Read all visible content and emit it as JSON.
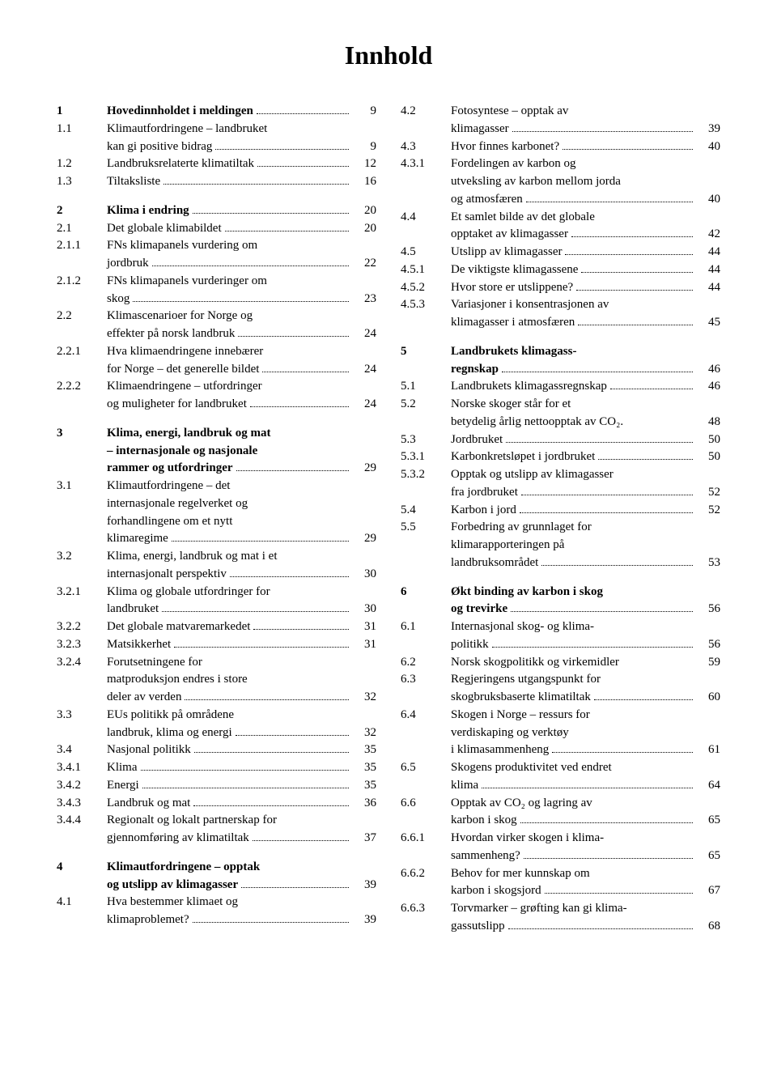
{
  "title": "Innhold",
  "left": [
    {
      "n": "1",
      "t": "Hovedinnholdet i meldingen",
      "p": "9",
      "bold": true,
      "dots": true
    },
    {
      "n": "1.1",
      "t": "Klimautfordringene – landbruket",
      "p": ""
    },
    {
      "n": "",
      "t": "kan gi positive bidrag",
      "p": "9",
      "dots": true
    },
    {
      "n": "1.2",
      "t": "Landbruksrelaterte klimatiltak",
      "p": "12",
      "dots": true
    },
    {
      "n": "1.3",
      "t": "Tiltaksliste",
      "p": "16",
      "dots": true
    },
    {
      "gap": true
    },
    {
      "n": "2",
      "t": "Klima i endring",
      "p": "20",
      "bold": true,
      "dots": true
    },
    {
      "n": "2.1",
      "t": "Det globale klimabildet",
      "p": "20",
      "dots": true
    },
    {
      "n": "2.1.1",
      "t": "FNs klimapanels vurdering om",
      "p": ""
    },
    {
      "n": "",
      "t": "jordbruk",
      "p": "22",
      "dots": true
    },
    {
      "n": "2.1.2",
      "t": "FNs klimapanels vurderinger om",
      "p": ""
    },
    {
      "n": "",
      "t": "skog",
      "p": "23",
      "dots": true
    },
    {
      "n": "2.2",
      "t": "Klimascenarioer for Norge og",
      "p": ""
    },
    {
      "n": "",
      "t": "effekter på norsk landbruk",
      "p": "24",
      "dots": true
    },
    {
      "n": "2.2.1",
      "t": "Hva klimaendringene innebærer",
      "p": ""
    },
    {
      "n": "",
      "t": "for Norge – det generelle bildet",
      "p": "24",
      "dots": true
    },
    {
      "n": "2.2.2",
      "t": "Klimaendringene – utfordringer",
      "p": ""
    },
    {
      "n": "",
      "t": "og muligheter for landbruket",
      "p": "24",
      "dots": true
    },
    {
      "gap": true
    },
    {
      "n": "3",
      "t": "Klima, energi, landbruk og mat",
      "p": "",
      "bold": true
    },
    {
      "n": "",
      "t": "– internasjonale og nasjonale",
      "p": "",
      "bold": true
    },
    {
      "n": "",
      "t": "rammer og utfordringer",
      "p": "29",
      "bold": true,
      "dots": true
    },
    {
      "n": "3.1",
      "t": "Klimautfordringene – det",
      "p": ""
    },
    {
      "n": "",
      "t": "internasjonale regelverket og",
      "p": ""
    },
    {
      "n": "",
      "t": "forhandlingene om et nytt",
      "p": ""
    },
    {
      "n": "",
      "t": "klimaregime",
      "p": "29",
      "dots": true
    },
    {
      "n": "3.2",
      "t": "Klima, energi, landbruk og mat i et",
      "p": ""
    },
    {
      "n": "",
      "t": "internasjonalt perspektiv",
      "p": "30",
      "dots": true
    },
    {
      "n": "3.2.1",
      "t": "Klima og globale utfordringer for",
      "p": ""
    },
    {
      "n": "",
      "t": "landbruket",
      "p": "30",
      "dots": true
    },
    {
      "n": "3.2.2",
      "t": "Det globale matvaremarkedet",
      "p": "31",
      "dots": true
    },
    {
      "n": "3.2.3",
      "t": "Matsikkerhet",
      "p": "31",
      "dots": true
    },
    {
      "n": "3.2.4",
      "t": "Forutsetningene for",
      "p": ""
    },
    {
      "n": "",
      "t": "matproduksjon endres i store",
      "p": ""
    },
    {
      "n": "",
      "t": "deler av verden",
      "p": "32",
      "dots": true
    },
    {
      "n": "3.3",
      "t": "EUs politikk på områdene",
      "p": ""
    },
    {
      "n": "",
      "t": "landbruk, klima og energi",
      "p": "32",
      "dots": true
    },
    {
      "n": "3.4",
      "t": "Nasjonal politikk",
      "p": "35",
      "dots": true
    },
    {
      "n": "3.4.1",
      "t": "Klima",
      "p": "35",
      "dots": true
    },
    {
      "n": "3.4.2",
      "t": "Energi",
      "p": "35",
      "dots": true
    },
    {
      "n": "3.4.3",
      "t": "Landbruk og mat",
      "p": "36",
      "dots": true
    },
    {
      "n": "3.4.4",
      "t": "Regionalt og lokalt partnerskap for",
      "p": ""
    },
    {
      "n": "",
      "t": "gjennomføring av klimatiltak",
      "p": "37",
      "dots": true
    },
    {
      "gap": true
    },
    {
      "n": "4",
      "t": "Klimautfordringene – opptak",
      "p": "",
      "bold": true
    },
    {
      "n": "",
      "t": "og utslipp av klimagasser",
      "p": "39",
      "bold": true,
      "dots": true
    },
    {
      "n": "4.1",
      "t": "Hva bestemmer klimaet og",
      "p": ""
    },
    {
      "n": "",
      "t": "klimaproblemet?",
      "p": "39",
      "dots": true
    }
  ],
  "right": [
    {
      "n": "4.2",
      "t": "Fotosyntese – opptak av",
      "p": ""
    },
    {
      "n": "",
      "t": "klimagasser",
      "p": "39",
      "dots": true
    },
    {
      "n": "4.3",
      "t": "Hvor finnes karbonet?",
      "p": "40",
      "dots": true
    },
    {
      "n": "4.3.1",
      "t": "Fordelingen av karbon og",
      "p": ""
    },
    {
      "n": "",
      "t": "utveksling av karbon mellom jorda",
      "p": ""
    },
    {
      "n": "",
      "t": "og atmosfæren",
      "p": "40",
      "dots": true
    },
    {
      "n": "4.4",
      "t": "Et samlet bilde av det globale",
      "p": ""
    },
    {
      "n": "",
      "t": "opptaket av klimagasser",
      "p": "42",
      "dots": true
    },
    {
      "n": "4.5",
      "t": "Utslipp av klimagasser",
      "p": "44",
      "dots": true
    },
    {
      "n": "4.5.1",
      "t": "De viktigste klimagassene",
      "p": "44",
      "dots": true
    },
    {
      "n": "4.5.2",
      "t": "Hvor store er utslippene?",
      "p": "44",
      "dots": true
    },
    {
      "n": "4.5.3",
      "t": "Variasjoner i konsentrasjonen av",
      "p": ""
    },
    {
      "n": "",
      "t": "klimagasser i atmosfæren",
      "p": "45",
      "dots": true
    },
    {
      "gap": true
    },
    {
      "n": "5",
      "t": "Landbrukets klimagass-",
      "p": "",
      "bold": true
    },
    {
      "n": "",
      "t": "regnskap",
      "p": "46",
      "bold": true,
      "dots": true
    },
    {
      "n": "5.1",
      "t": "Landbrukets klimagassregnskap",
      "p": "46",
      "dots": true
    },
    {
      "n": "5.2",
      "t": "Norske skoger står for et",
      "p": ""
    },
    {
      "n": "",
      "t": "betydelig årlig nettoopptak av CO₂.",
      "p": "48"
    },
    {
      "n": "5.3",
      "t": "Jordbruket",
      "p": "50",
      "dots": true
    },
    {
      "n": "5.3.1",
      "t": "Karbonkretsløpet i jordbruket",
      "p": "50",
      "dots": true
    },
    {
      "n": "5.3.2",
      "t": "Opptak og utslipp av klimagasser",
      "p": ""
    },
    {
      "n": "",
      "t": "fra jordbruket",
      "p": "52",
      "dots": true
    },
    {
      "n": "5.4",
      "t": "Karbon i jord",
      "p": "52",
      "dots": true
    },
    {
      "n": "5.5",
      "t": "Forbedring av grunnlaget for",
      "p": ""
    },
    {
      "n": "",
      "t": "klimarapporteringen på",
      "p": ""
    },
    {
      "n": "",
      "t": "landbruksområdet",
      "p": "53",
      "dots": true
    },
    {
      "gap": true
    },
    {
      "n": "6",
      "t": "Økt binding av karbon i skog",
      "p": "",
      "bold": true
    },
    {
      "n": "",
      "t": "og trevirke",
      "p": "56",
      "bold": true,
      "dots": true
    },
    {
      "n": "6.1",
      "t": "Internasjonal skog- og klima-",
      "p": ""
    },
    {
      "n": "",
      "t": "politikk",
      "p": "56",
      "dots": true
    },
    {
      "n": "6.2",
      "t": "Norsk skogpolitikk og virkemidler",
      "p": "59"
    },
    {
      "n": "6.3",
      "t": "Regjeringens utgangspunkt for",
      "p": ""
    },
    {
      "n": "",
      "t": "skogbruksbaserte klimatiltak",
      "p": "60",
      "dots": true
    },
    {
      "n": "6.4",
      "t": "Skogen i Norge – ressurs for",
      "p": ""
    },
    {
      "n": "",
      "t": "verdiskaping og verktøy",
      "p": ""
    },
    {
      "n": "",
      "t": "i klimasammenheng",
      "p": "61",
      "dots": true
    },
    {
      "n": "6.5",
      "t": "Skogens produktivitet ved endret",
      "p": ""
    },
    {
      "n": "",
      "t": "klima",
      "p": "64",
      "dots": true
    },
    {
      "n": "6.6",
      "t": "Opptak av CO₂ og lagring av",
      "p": ""
    },
    {
      "n": "",
      "t": "karbon i skog",
      "p": "65",
      "dots": true
    },
    {
      "n": "6.6.1",
      "t": "Hvordan virker skogen i klima-",
      "p": ""
    },
    {
      "n": "",
      "t": "sammenheng?",
      "p": "65",
      "dots": true
    },
    {
      "n": "6.6.2",
      "t": "Behov for mer kunnskap om",
      "p": ""
    },
    {
      "n": "",
      "t": "karbon i skogsjord",
      "p": "67",
      "dots": true
    },
    {
      "n": "6.6.3",
      "t": "Torvmarker – grøfting kan gi klima-",
      "p": ""
    },
    {
      "n": "",
      "t": "gassutslipp",
      "p": "68",
      "dots": true
    }
  ]
}
